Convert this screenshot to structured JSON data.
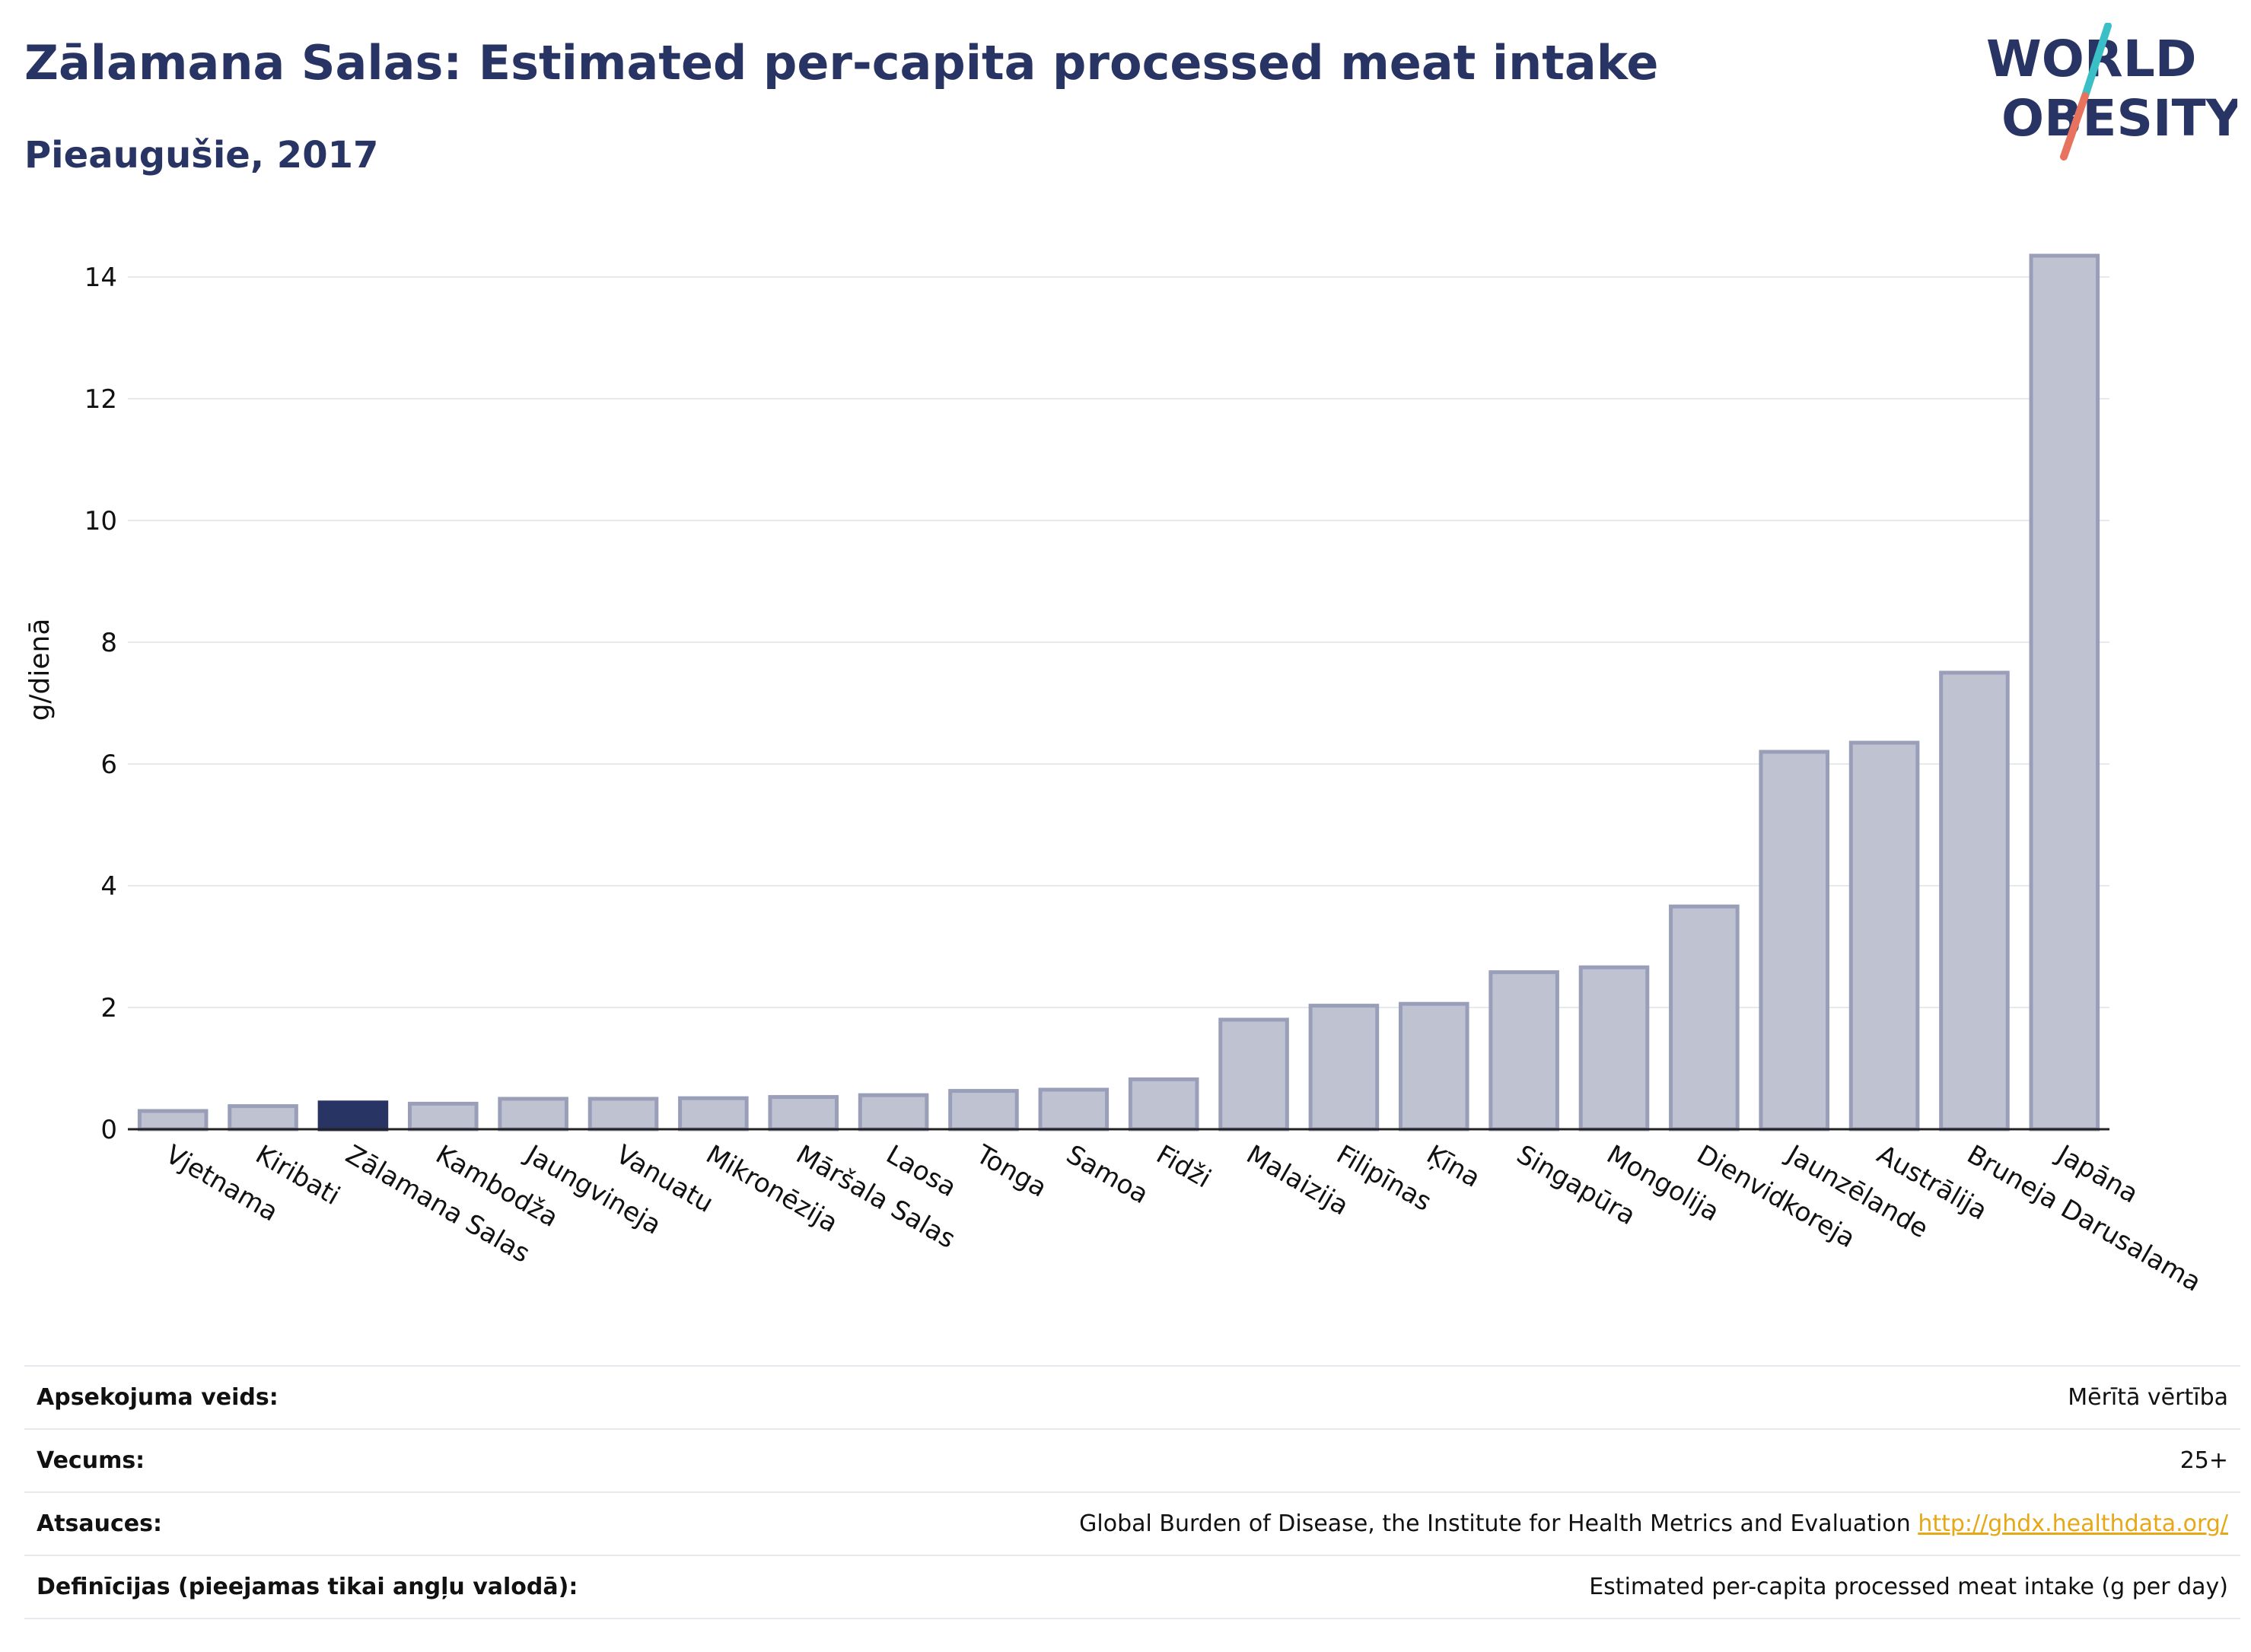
{
  "header": {
    "title": "Zālamana Salas: Estimated per-capita processed meat intake",
    "subtitle": "Pieaugušie, 2017",
    "logo_line1": "WORLD",
    "logo_line2": "OBESITY"
  },
  "colors": {
    "title": "#283463",
    "bar_fill": "#bfc2d1",
    "bar_stroke": "#9a9fb9",
    "highlight": "#283463",
    "grid": "#e6e9ee",
    "link": "#e6a817",
    "logo_slash_top": "#3bbfc6",
    "logo_slash_bottom": "#e7735f"
  },
  "chart_data": {
    "type": "bar",
    "title": "Zālamana Salas: Estimated per-capita processed meat intake",
    "subtitle": "Pieaugušie, 2017",
    "ylabel": "g/dienā",
    "xlabel": "",
    "ylim": [
      0,
      15
    ],
    "yticks": [
      0,
      2,
      4,
      6,
      8,
      10,
      12,
      14
    ],
    "grid": true,
    "highlight": "Zālamana Salas",
    "categories": [
      "Vjetnama",
      "Kiribati",
      "Zālamana Salas",
      "Kambodža",
      "Jaungvineja",
      "Vanuatu",
      "Mikronēzija",
      "Māršala Salas",
      "Laosa",
      "Tonga",
      "Samoa",
      "Fidži",
      "Malaizija",
      "Filipīnas",
      "Ķīna",
      "Singapūra",
      "Mongolija",
      "Dienvidkoreja",
      "Jaunzēlande",
      "Austrālija",
      "Bruneja Darusalama",
      "Japāna"
    ],
    "values": [
      0.3,
      0.38,
      0.44,
      0.42,
      0.5,
      0.5,
      0.51,
      0.53,
      0.56,
      0.63,
      0.65,
      0.82,
      1.8,
      2.03,
      2.06,
      2.58,
      2.66,
      3.66,
      6.2,
      6.35,
      7.5,
      14.35
    ]
  },
  "meta": [
    {
      "label": "Apsekojuma veids:",
      "value": "Mērītā vērtība",
      "link": ""
    },
    {
      "label": "Vecums:",
      "value": "25+",
      "link": ""
    },
    {
      "label": "Atsauces:",
      "value": "Global Burden of Disease, the Institute for Health Metrics and Evaluation ",
      "link": "http://ghdx.healthdata.org/"
    },
    {
      "label": "Definīcijas (pieejamas tikai angļu valodā):",
      "value": "Estimated per-capita processed meat intake (g per day)",
      "link": ""
    }
  ]
}
